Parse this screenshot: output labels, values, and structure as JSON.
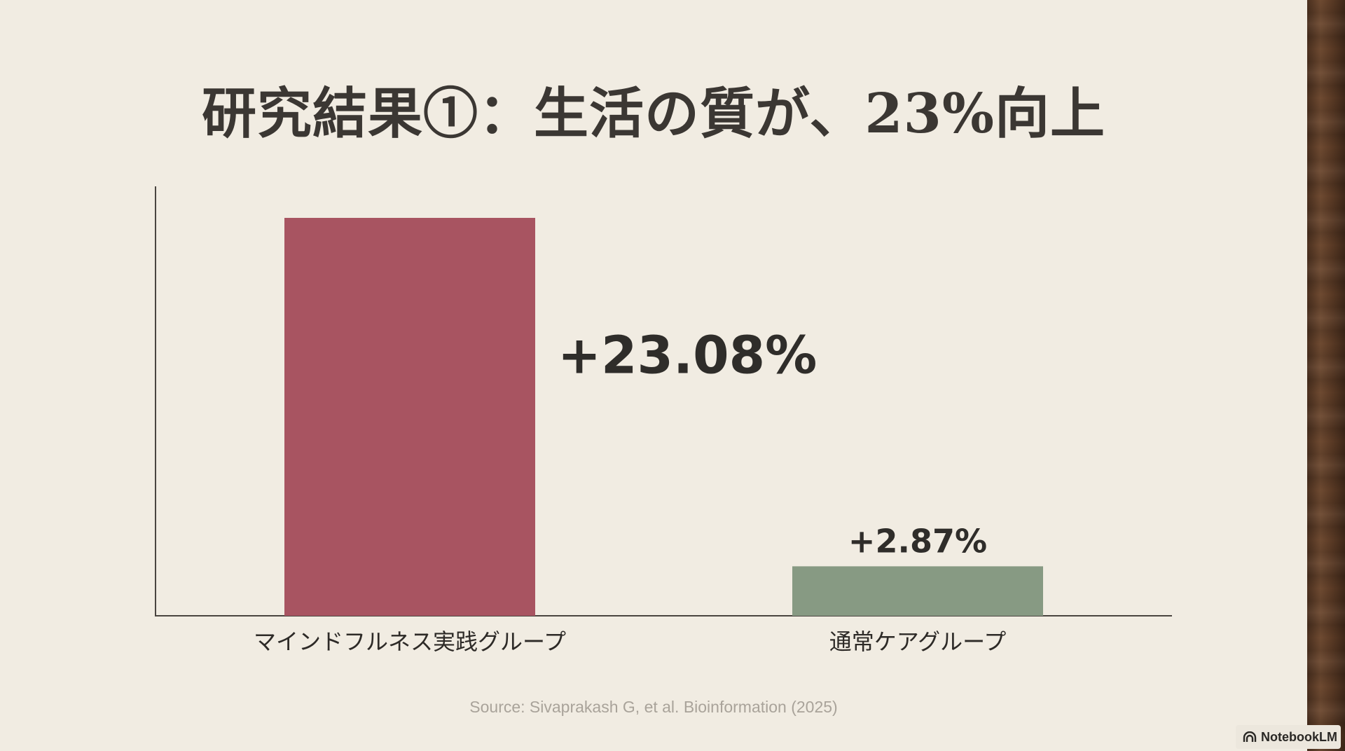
{
  "slide": {
    "title": "研究結果①：生活の質が、23%向上",
    "source": "Source: Sivaprakash G, et al. Bioinformation (2025)"
  },
  "badge": {
    "label": "NotebookLM",
    "icon": "notebooklm-logo-icon"
  },
  "colors": {
    "mindfulness_bar": "#a85461",
    "usual_care_bar": "#879a83"
  },
  "chart_data": {
    "type": "bar",
    "title": "研究結果①：生活の質が、23%向上",
    "categories": [
      "マインドフルネス実践グループ",
      "通常ケアグループ"
    ],
    "values": [
      23.08,
      2.87
    ],
    "data_labels": [
      "+23.08%",
      "+2.87%"
    ],
    "xlabel": "",
    "ylabel": "",
    "ylim": [
      0,
      25
    ],
    "grid": false,
    "legend": "none"
  }
}
